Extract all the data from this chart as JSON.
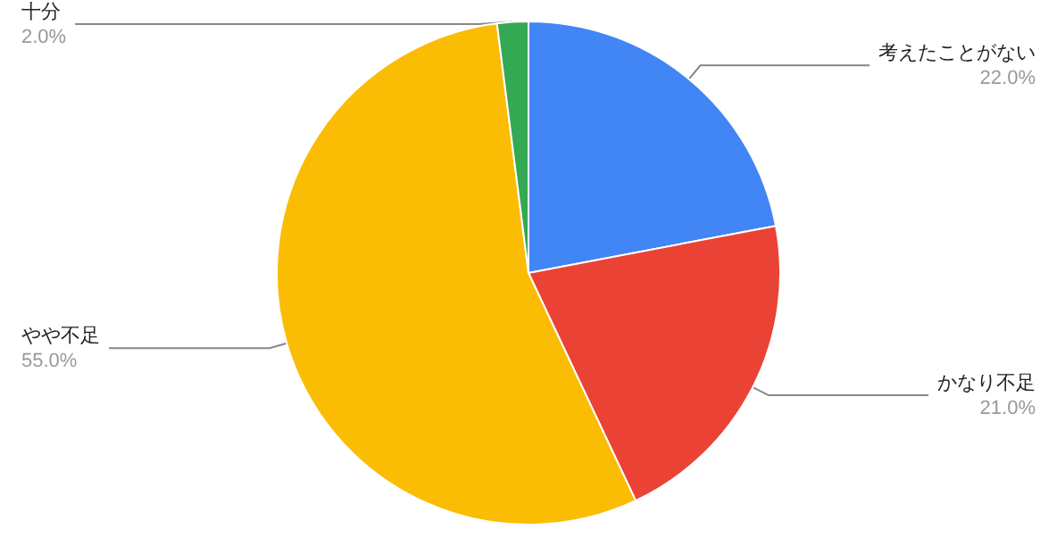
{
  "chart_data": {
    "type": "pie",
    "categories": [
      "考えたことがない",
      "かなり不足",
      "やや不足",
      "十分"
    ],
    "values": [
      22,
      21,
      55,
      2
    ],
    "value_labels": [
      "22.0%",
      "21.0%",
      "55.0%",
      "2.0%"
    ],
    "colors": [
      "#4285f4",
      "#ea4335",
      "#fbbc04",
      "#34a853"
    ]
  }
}
